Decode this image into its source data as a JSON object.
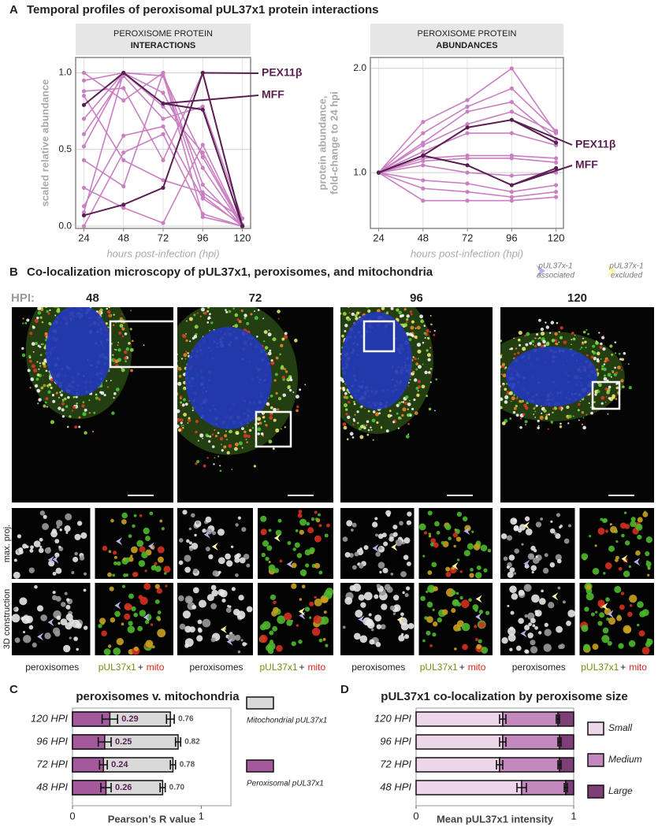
{
  "panel_a": {
    "label": "A",
    "title": "Temporal profiles of peroxisomal pUL37x1 protein interactions"
  },
  "panel_b": {
    "label": "B",
    "title": "Co-localization microscopy of pUL37x1, peroxisomes, and mitochondria",
    "hpi_label": "HPI:",
    "columns": [
      "48",
      "72",
      "96",
      "120"
    ],
    "legend": [
      [
        "pUL37x-1",
        "associated"
      ],
      [
        "pUL37x-1",
        "excluded"
      ]
    ],
    "rows": [
      "max. proj.",
      "3D construction"
    ],
    "channels": [
      "peroxisomes",
      "pUL37x1",
      "+",
      "mito"
    ]
  },
  "panel_c": {
    "label": "C"
  },
  "panel_d": {
    "label": "D"
  },
  "chart_data": [
    {
      "type": "line",
      "title": "PEROXISOME PROTEIN",
      "subtitle": "INTERACTIONS",
      "ylabel": [
        "scaled relative abundance"
      ],
      "xlabel": "hours post-infection (hpi)",
      "x": [
        24,
        48,
        72,
        96,
        120
      ],
      "xlim": [
        19,
        125
      ],
      "xticks": [
        24,
        48,
        72,
        96,
        120
      ],
      "ylim": [
        -0.015,
        1.1
      ],
      "yticks": [
        {
          "value": 0,
          "label": "0.0"
        },
        {
          "value": 0.5,
          "label": "0.5"
        },
        {
          "value": 1,
          "label": "1.0"
        }
      ],
      "grid": true,
      "log_scale": false,
      "series": [
        {
          "color": "#c97fc2",
          "values": [
            1.0,
            0.82,
            1.0,
            0.27,
            0.0
          ]
        },
        {
          "color": "#c97fc2",
          "values": [
            0.95,
            1.0,
            0.78,
            0.48,
            0.0
          ]
        },
        {
          "color": "#c97fc2",
          "values": [
            0.88,
            0.9,
            0.43,
            1.0,
            0.0
          ]
        },
        {
          "color": "#c97fc2",
          "values": [
            0.7,
            1.0,
            0.98,
            0.45,
            0.0
          ]
        },
        {
          "color": "#c97fc2",
          "values": [
            0.6,
            0.98,
            0.7,
            0.78,
            0.05
          ]
        },
        {
          "color": "#c97fc2",
          "values": [
            0.52,
            1.0,
            0.87,
            0.38,
            0.0
          ]
        },
        {
          "color": "#c97fc2",
          "values": [
            0.43,
            0.26,
            1.0,
            0.06,
            0.0
          ]
        },
        {
          "color": "#c97fc2",
          "values": [
            0.25,
            0.12,
            0.02,
            0.53,
            0.0
          ]
        },
        {
          "color": "#c97fc2",
          "values": [
            0.13,
            0.59,
            0.65,
            0.18,
            0.01
          ]
        },
        {
          "color": "#c97fc2",
          "values": [
            0.09,
            1.0,
            0.98,
            0.2,
            0.0
          ]
        },
        {
          "color": "#c97fc2",
          "values": [
            0.0,
            0.48,
            0.6,
            0.08,
            0.0
          ]
        },
        {
          "color": "#c97fc2",
          "values": [
            0.85,
            0.43,
            0.3,
            0.22,
            0.05
          ]
        },
        {
          "name": "PEX11β",
          "color": "#5a1f52",
          "values": [
            0.07,
            0.14,
            0.25,
            1.0,
            0.0
          ]
        },
        {
          "name": "MFF",
          "color": "#5a1f52",
          "values": [
            0.79,
            1.0,
            0.8,
            0.76,
            0.0
          ]
        }
      ]
    },
    {
      "type": "line",
      "title": "PEROXISOME PROTEIN",
      "subtitle": "ABUNDANCES",
      "ylabel": [
        "protein abundance,",
        "fold-change to 24 hpi"
      ],
      "xlabel": "hours post-infection (hpi)",
      "x": [
        24,
        48,
        72,
        96,
        120
      ],
      "xlim": [
        19.5,
        124
      ],
      "xticks": [
        24,
        48,
        72,
        96,
        120
      ],
      "ylim": [
        0.69,
        2.15
      ],
      "yticks": [
        {
          "value": 1,
          "label": "1.0"
        },
        {
          "value": 2,
          "label": "2.0"
        }
      ],
      "grid": true,
      "log_scale": true,
      "series": [
        {
          "color": "#c97fc2",
          "values": [
            1,
            1.4,
            1.62,
            2.0,
            1.3
          ]
        },
        {
          "color": "#c97fc2",
          "values": [
            1,
            1.3,
            1.55,
            1.75,
            1.32
          ]
        },
        {
          "color": "#c97fc2",
          "values": [
            1,
            1.22,
            1.5,
            1.6,
            1.25
          ]
        },
        {
          "color": "#c97fc2",
          "values": [
            1,
            1.2,
            1.38,
            1.5,
            1.3
          ]
        },
        {
          "color": "#c97fc2",
          "values": [
            1,
            1.15,
            1.3,
            1.3,
            1.2
          ]
        },
        {
          "color": "#c97fc2",
          "values": [
            1,
            1.1,
            1.12,
            1.12,
            1.1
          ]
        },
        {
          "color": "#c97fc2",
          "values": [
            1,
            1.08,
            1.1,
            1.1,
            1.07
          ]
        },
        {
          "color": "#c97fc2",
          "values": [
            1,
            1.05,
            1.0,
            0.98,
            1.0
          ]
        },
        {
          "color": "#c97fc2",
          "values": [
            1,
            0.95,
            0.93,
            0.88,
            0.92
          ]
        },
        {
          "color": "#c97fc2",
          "values": [
            1,
            0.9,
            0.88,
            0.85,
            0.88
          ]
        },
        {
          "color": "#c97fc2",
          "values": [
            1,
            0.83,
            0.83,
            0.83,
            0.85
          ]
        },
        {
          "name": "PEX11β",
          "color": "#5a1f52",
          "values": [
            1,
            1.12,
            1.35,
            1.42,
            1.22
          ]
        },
        {
          "name": "MFF",
          "color": "#5a1f52",
          "values": [
            1,
            1.12,
            1.05,
            0.92,
            1.03
          ]
        }
      ]
    },
    {
      "type": "hbar",
      "title": "peroxisomes v. mitochondria",
      "xlabel": "Pearson’s R value",
      "categories": [
        "120 HPI",
        "96 HPI",
        "72 HPI",
        "48 HPI"
      ],
      "xlim": [
        0,
        1.23
      ],
      "xticks": [
        0,
        1
      ],
      "series": [
        {
          "name": "Mitochondrial pUL37x1",
          "color": "#d9d9d9",
          "values": [
            0.76,
            0.82,
            0.78,
            0.7
          ],
          "value_labels": [
            "0.76",
            "0.82",
            "0.78",
            "0.70"
          ],
          "errors": [
            0.03,
            0.02,
            0.02,
            0.02
          ]
        },
        {
          "name": "Peroxisomal pUL37x1",
          "color": "#a35a9c",
          "values": [
            0.29,
            0.25,
            0.24,
            0.26
          ],
          "errors": [
            0.06,
            0.05,
            0.03,
            0.04
          ]
        }
      ]
    },
    {
      "type": "stacked_hbar",
      "title": "pUL37x1 co-localization by peroxisome size",
      "xlabel": "Mean pUL37x1 intensity",
      "categories": [
        "120 HPI",
        "96 HPI",
        "72 HPI",
        "48 HPI"
      ],
      "xlim": [
        0,
        1
      ],
      "xticks": [
        0,
        1
      ],
      "series": [
        {
          "name": "Small",
          "color": "#edd6ea",
          "values": [
            0.55,
            0.55,
            0.53,
            0.67
          ],
          "errors": [
            0.02,
            0.02,
            0.02,
            0.03
          ]
        },
        {
          "name": "Medium",
          "color": "#c389be",
          "values": [
            0.35,
            0.36,
            0.38,
            0.28
          ],
          "errors": [
            0.01,
            0.01,
            0.01,
            0.01
          ]
        },
        {
          "name": "Large",
          "color": "#7d3f75",
          "values": [
            0.1,
            0.09,
            0.09,
            0.05
          ]
        }
      ]
    }
  ]
}
